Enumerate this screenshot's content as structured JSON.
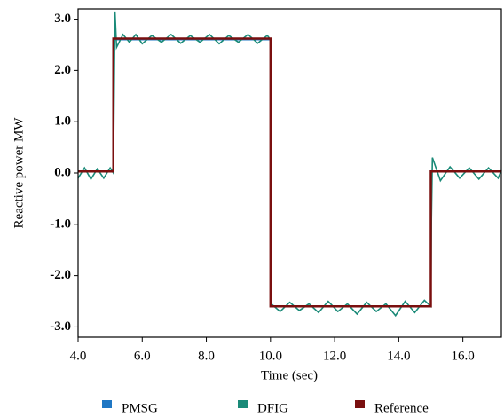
{
  "chart_data": {
    "type": "line",
    "x_label": "Time (sec)",
    "y_label": "Reactive power MW",
    "xlim": [
      4.0,
      17.2
    ],
    "ylim": [
      -3.2,
      3.2
    ],
    "xticks": [
      {
        "value": 4,
        "label": "4.0"
      },
      {
        "value": 6,
        "label": "6.0"
      },
      {
        "value": 8,
        "label": "8.0"
      },
      {
        "value": 10,
        "label": "10.0"
      },
      {
        "value": 12,
        "label": "12.0"
      },
      {
        "value": 14,
        "label": "14.0"
      },
      {
        "value": 16,
        "label": "16.0"
      }
    ],
    "yticks": [
      {
        "value": 3,
        "label": "3.0"
      },
      {
        "value": 2,
        "label": "2.0"
      },
      {
        "value": 1,
        "label": "1.0"
      },
      {
        "value": 0,
        "label": "0.0"
      },
      {
        "value": -1,
        "label": "-1.0"
      },
      {
        "value": -2,
        "label": "-2.0"
      },
      {
        "value": -3,
        "label": "-3.0"
      }
    ],
    "grid": false,
    "legend": "bottom",
    "series": [
      {
        "name": "PMSG",
        "color": "#1f77c4",
        "x": [
          4.0,
          5.1,
          5.1,
          10.0,
          10.0,
          10.05,
          15.0,
          15.0,
          17.2
        ],
        "values": [
          0.03,
          0.03,
          2.6,
          2.6,
          -2.4,
          -2.6,
          -2.6,
          0.03,
          0.03
        ]
      },
      {
        "name": "DFIG",
        "color": "#1a8a78",
        "x": [
          4.0,
          4.2,
          4.4,
          4.6,
          4.8,
          5.0,
          5.1,
          5.15,
          5.2,
          5.4,
          5.6,
          5.8,
          6.0,
          6.3,
          6.6,
          6.9,
          7.2,
          7.5,
          7.8,
          8.1,
          8.4,
          8.7,
          9.0,
          9.3,
          9.6,
          9.9,
          10.0,
          10.02,
          10.3,
          10.6,
          10.9,
          11.2,
          11.5,
          11.8,
          12.1,
          12.4,
          12.7,
          13.0,
          13.3,
          13.6,
          13.9,
          14.2,
          14.5,
          14.8,
          15.0,
          15.02,
          15.05,
          15.3,
          15.6,
          15.9,
          16.2,
          16.5,
          16.8,
          17.1,
          17.2
        ],
        "values": [
          -0.1,
          0.1,
          -0.12,
          0.08,
          -0.1,
          0.1,
          0.0,
          3.15,
          2.45,
          2.7,
          2.55,
          2.7,
          2.52,
          2.68,
          2.55,
          2.7,
          2.53,
          2.68,
          2.55,
          2.7,
          2.52,
          2.68,
          2.55,
          2.7,
          2.53,
          2.68,
          2.6,
          -2.55,
          -2.7,
          -2.52,
          -2.68,
          -2.55,
          -2.72,
          -2.5,
          -2.7,
          -2.55,
          -2.75,
          -2.52,
          -2.7,
          -2.55,
          -2.78,
          -2.5,
          -2.72,
          -2.48,
          -2.6,
          -0.9,
          0.3,
          -0.15,
          0.12,
          -0.1,
          0.1,
          -0.12,
          0.1,
          -0.1,
          0.05
        ]
      },
      {
        "name": "Reference",
        "color": "#7a0f0f",
        "x": [
          4.0,
          5.1,
          5.1,
          10.0,
          10.0,
          15.0,
          15.0,
          17.2
        ],
        "values": [
          0.03,
          0.03,
          2.62,
          2.62,
          -2.6,
          -2.6,
          0.03,
          0.03
        ]
      }
    ]
  }
}
